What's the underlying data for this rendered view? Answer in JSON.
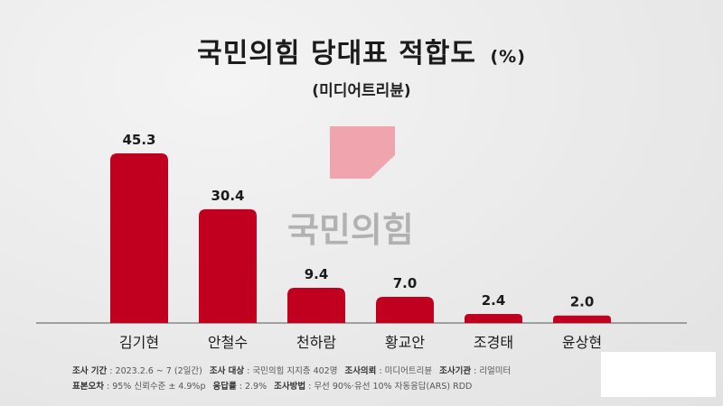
{
  "header": {
    "title": "국민의힘 당대표 적합도",
    "unit": "(%)",
    "subtitle": "(미디어트리뷴)"
  },
  "watermark": {
    "text": "국민의힘",
    "logo_color": "#f08c98"
  },
  "chart_data": {
    "type": "bar",
    "title": "국민의힘 당대표 적합도",
    "subtitle": "(미디어트리뷴)",
    "unit": "%",
    "categories": [
      "김기현",
      "안철수",
      "천하람",
      "황교안",
      "조경태",
      "윤상현"
    ],
    "values": [
      45.3,
      30.4,
      9.4,
      7.0,
      2.4,
      2.0
    ],
    "value_labels": [
      "45.3",
      "30.4",
      "9.4",
      "7.0",
      "2.4",
      "2.0"
    ],
    "bar_color": "#c0001e",
    "ylim": [
      0,
      45.3
    ],
    "grid": false,
    "legend": "none"
  },
  "footer": {
    "line1": [
      {
        "key": "조사 기간",
        "value": ": 2023.2.6 ~ 7 (2일간)"
      },
      {
        "key": "조사 대상",
        "value": ": 국민의힘 지지층 402명"
      },
      {
        "key": "조사의뢰",
        "value": ": 미디어트리뷴"
      },
      {
        "key": "조사기관",
        "value": ": 리얼미터"
      }
    ],
    "line2": [
      {
        "key": "표본오차",
        "value": ": 95% 신뢰수준 ± 4.9%p"
      },
      {
        "key": "응답률",
        "value": ": 2.9%"
      },
      {
        "key": "조사방법",
        "value": ": 무선 90%·유선 10% 자동응답(ARS) RDD"
      }
    ]
  }
}
